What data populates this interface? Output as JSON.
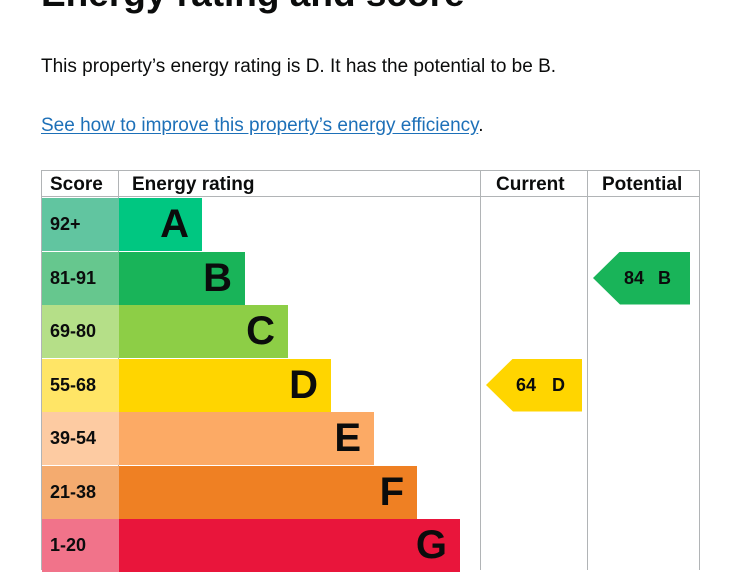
{
  "heading": "Energy rating and score",
  "summary": "This property’s energy rating is D. It has the potential to be B.",
  "improve_link": "See how to improve this property’s energy efficiency",
  "improve_suffix": ".",
  "table": {
    "headers": {
      "score": "Score",
      "rating": "Energy rating",
      "current": "Current",
      "potential": "Potential"
    },
    "bands": [
      {
        "score": "92+",
        "letter": "A",
        "bar_color": "#00c781",
        "score_color": "#61c5a0"
      },
      {
        "score": "81-91",
        "letter": "B",
        "bar_color": "#19b459",
        "score_color": "#66c78e"
      },
      {
        "score": "69-80",
        "letter": "C",
        "bar_color": "#8dce46",
        "score_color": "#b5df88"
      },
      {
        "score": "55-68",
        "letter": "D",
        "bar_color": "#ffd500",
        "score_color": "#ffe566"
      },
      {
        "score": "39-54",
        "letter": "E",
        "bar_color": "#fcaa65",
        "score_color": "#fdcba2"
      },
      {
        "score": "21-38",
        "letter": "F",
        "bar_color": "#ef8023",
        "score_color": "#f4ab6f"
      },
      {
        "score": "1-20",
        "letter": "G",
        "bar_color": "#e9153b",
        "score_color": "#f1738a"
      }
    ],
    "current": {
      "score": "64",
      "letter": "D",
      "color": "#ffd500"
    },
    "potential": {
      "score": "84",
      "letter": "B",
      "color": "#19b459"
    }
  }
}
